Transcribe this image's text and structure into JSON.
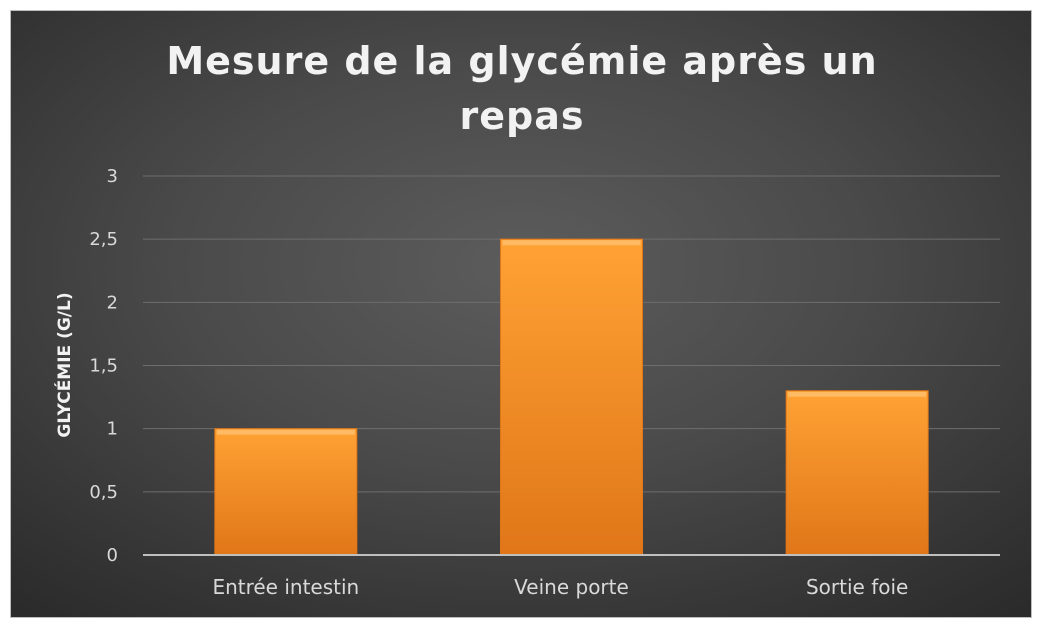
{
  "colors": {
    "bar_light": "#ffa234",
    "bar_dark": "#e07618",
    "gridline": "#6e6e6e",
    "axis": "#bfbfbf"
  },
  "chart_data": {
    "type": "bar",
    "title_lines": [
      "Mesure de la glycémie après un",
      "repas"
    ],
    "xlabel": "",
    "ylabel": "GLYCÉMIE (G/L)",
    "categories": [
      "Entrée intestin",
      "Veine porte",
      "Sortie foie"
    ],
    "values": [
      1,
      2.5,
      1.3
    ],
    "ylim": [
      0,
      3
    ],
    "yticks": [
      "0",
      "0,5",
      "1",
      "1,5",
      "2",
      "2,5",
      "3"
    ],
    "grid": true,
    "legend": "none"
  }
}
